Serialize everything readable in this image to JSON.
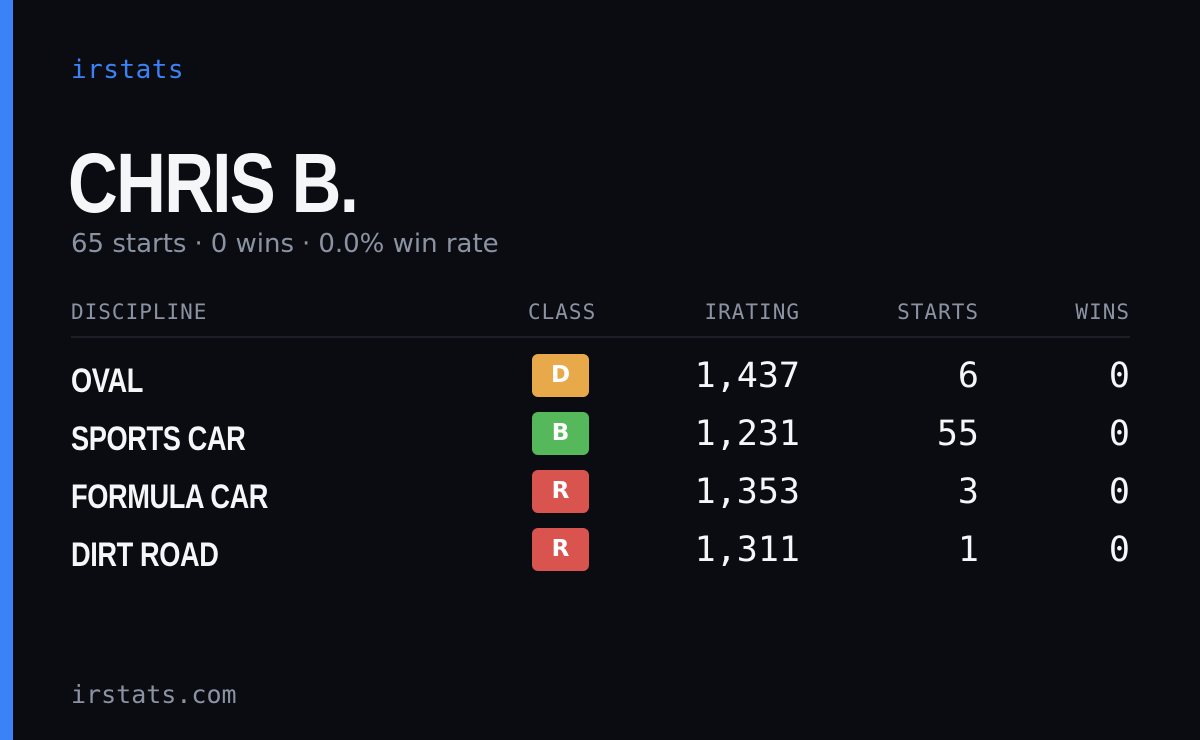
{
  "brand": "irstats",
  "driver": {
    "name": "CHRIS B.",
    "starts_text": "65 starts",
    "wins_text": "0 wins",
    "win_rate_text": "0.0% win rate",
    "separator": "·"
  },
  "table": {
    "headers": {
      "discipline": "DISCIPLINE",
      "class": "CLASS",
      "irating": "IRATING",
      "starts": "STARTS",
      "wins": "WINS"
    },
    "rows": [
      {
        "discipline": "OVAL",
        "class": "D",
        "class_color": "#e8a94a",
        "irating": "1,437",
        "starts": "6",
        "wins": "0"
      },
      {
        "discipline": "SPORTS CAR",
        "class": "B",
        "class_color": "#55b85a",
        "irating": "1,231",
        "starts": "55",
        "wins": "0"
      },
      {
        "discipline": "FORMULA CAR",
        "class": "R",
        "class_color": "#d9534f",
        "irating": "1,353",
        "starts": "3",
        "wins": "0"
      },
      {
        "discipline": "DIRT ROAD",
        "class": "R",
        "class_color": "#d9534f",
        "irating": "1,311",
        "starts": "1",
        "wins": "0"
      }
    ]
  },
  "footer": "irstats.com",
  "colors": {
    "accent": "#3b82f6",
    "background": "#0a0c12",
    "muted_text": "#8b93a3",
    "primary_text": "#f5f6f8"
  }
}
